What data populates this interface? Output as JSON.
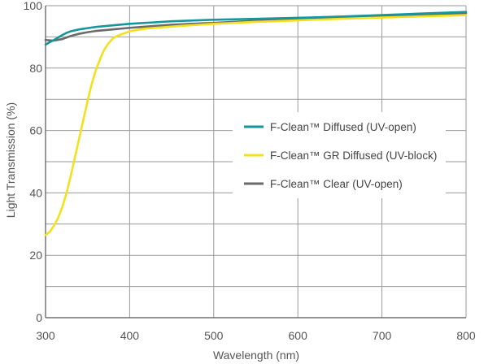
{
  "chart_data": {
    "type": "line",
    "xlabel": "Wavelength (nm)",
    "ylabel": "Light Transmission (%)",
    "xlim": [
      300,
      800
    ],
    "ylim": [
      0,
      100
    ],
    "x_ticks": [
      300,
      400,
      500,
      600,
      700,
      800
    ],
    "y_ticks": [
      0,
      20,
      40,
      60,
      80,
      100
    ],
    "x_grid": [
      300,
      400,
      500,
      600,
      700,
      800
    ],
    "y_grid": [
      0,
      10,
      20,
      30,
      40,
      50,
      60,
      70,
      80,
      90,
      100
    ],
    "grid": true,
    "legend_position": "center-right",
    "series": [
      {
        "name": "F-Clean™ Diffused (UV-open)",
        "color": "#14969c",
        "x": [
          300,
          305,
          310,
          315,
          320,
          325,
          330,
          340,
          350,
          360,
          380,
          400,
          425,
          450,
          500,
          550,
          600,
          650,
          700,
          750,
          800
        ],
        "y": [
          87.5,
          88.3,
          89.0,
          89.8,
          90.6,
          91.3,
          91.8,
          92.4,
          92.8,
          93.2,
          93.7,
          94.2,
          94.6,
          95.0,
          95.5,
          95.8,
          96.1,
          96.5,
          97.0,
          97.5,
          98.0
        ]
      },
      {
        "name": "F-Clean™ GR Diffused (UV-block)",
        "color": "#f5e01e",
        "x": [
          300,
          305,
          310,
          315,
          320,
          325,
          330,
          335,
          340,
          345,
          350,
          355,
          360,
          365,
          370,
          375,
          380,
          385,
          390,
          395,
          400,
          410,
          420,
          440,
          460,
          500,
          550,
          600,
          650,
          700,
          750,
          800
        ],
        "y": [
          26.5,
          27.5,
          29.5,
          32.0,
          35.5,
          40.0,
          45.5,
          51.5,
          57.5,
          63.5,
          69.5,
          75.0,
          79.5,
          83.0,
          86.0,
          88.0,
          89.5,
          90.3,
          90.8,
          91.3,
          91.8,
          92.3,
          92.7,
          93.1,
          93.5,
          94.2,
          94.8,
          95.3,
          95.8,
          96.2,
          96.6,
          97.0
        ]
      },
      {
        "name": "F-Clean™ Clear (UV-open)",
        "color": "#6a6a6a",
        "x": [
          300,
          310,
          320,
          330,
          340,
          350,
          360,
          380,
          400,
          425,
          450,
          500,
          550,
          600,
          650,
          700,
          750,
          800
        ],
        "y": [
          89.0,
          88.8,
          89.3,
          90.3,
          91.0,
          91.5,
          91.9,
          92.4,
          92.9,
          93.4,
          93.9,
          94.5,
          95.2,
          95.7,
          96.2,
          96.7,
          97.2,
          97.6
        ]
      }
    ]
  }
}
